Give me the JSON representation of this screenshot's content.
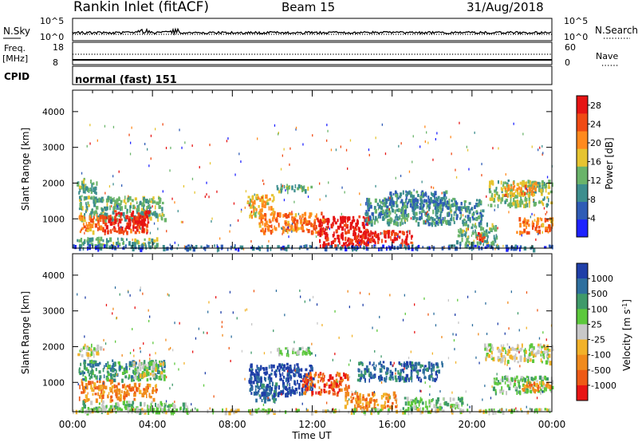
{
  "header": {
    "station": "Rankin Inlet (fitACF)",
    "beam": "Beam 15",
    "date": "31/Aug/2018"
  },
  "top_panels": {
    "nsky": {
      "label": "N.Sky",
      "tick_top": "10^5",
      "tick_bottom": "10^0"
    },
    "nsearch": {
      "label": "N.Search",
      "tick_top": "10^5",
      "tick_bottom": "10^0"
    },
    "freq": {
      "label_line1": "Freq.",
      "label_line2": "[MHz]",
      "tick_top": "18",
      "tick_bottom": "8"
    },
    "nave": {
      "label": "Nave",
      "tick_top": "60",
      "tick_bottom": "0"
    },
    "cpid": {
      "label": "CPID",
      "value": "normal (fast) 151"
    }
  },
  "chart_data": [
    {
      "type": "heatmap",
      "panel": "power",
      "ylabel": "Slant Range [km]",
      "yticks": [
        1000,
        2000,
        3000,
        4000
      ],
      "ylim": [
        180,
        4600
      ],
      "xlabel": "Time UT",
      "xticks": [
        "00:00",
        "04:00",
        "08:00",
        "12:00",
        "16:00",
        "20:00",
        "00:00"
      ],
      "xlim_hours": [
        0,
        24
      ],
      "colorbar": {
        "label": "Power [dB]",
        "ticks": [
          4,
          8,
          12,
          16,
          20,
          24,
          28
        ],
        "range": [
          0,
          30
        ],
        "colors": [
          "#1e22ff",
          "#2f5cb6",
          "#3d8e8e",
          "#6ab46a",
          "#e6c430",
          "#ff8a1e",
          "#f04a14",
          "#e61414"
        ]
      },
      "regions": [
        {
          "t0": 0.2,
          "t1": 1.2,
          "r0": 1750,
          "r1": 2150,
          "level": 12
        },
        {
          "t0": 0.3,
          "t1": 4.6,
          "r0": 1000,
          "r1": 1650,
          "level": 12
        },
        {
          "t0": 0.3,
          "t1": 1.5,
          "r0": 650,
          "r1": 1150,
          "level": 22
        },
        {
          "t0": 1.5,
          "t1": 3.8,
          "r0": 650,
          "r1": 1250,
          "level": 26
        },
        {
          "t0": 2.6,
          "t1": 3.6,
          "r0": 800,
          "r1": 1100,
          "level": 28
        },
        {
          "t0": 0.2,
          "t1": 4.2,
          "r0": 250,
          "r1": 500,
          "level": 12
        },
        {
          "t0": 8.7,
          "t1": 10.2,
          "r0": 1100,
          "r1": 1700,
          "level": 18
        },
        {
          "t0": 9.3,
          "t1": 12.6,
          "r0": 650,
          "r1": 1200,
          "level": 22
        },
        {
          "t0": 10.2,
          "t1": 12.0,
          "r0": 1800,
          "r1": 2000,
          "level": 12
        },
        {
          "t0": 12.2,
          "t1": 14.8,
          "r0": 250,
          "r1": 1100,
          "level": 28
        },
        {
          "t0": 14.0,
          "t1": 17.0,
          "r0": 300,
          "r1": 700,
          "level": 28
        },
        {
          "t0": 14.6,
          "t1": 20.5,
          "r0": 900,
          "r1": 1600,
          "level": 10
        },
        {
          "t0": 15.5,
          "t1": 18.8,
          "r0": 1350,
          "r1": 1800,
          "level": 8
        },
        {
          "t0": 19.2,
          "t1": 21.2,
          "r0": 300,
          "r1": 900,
          "level": 12
        },
        {
          "t0": 20.2,
          "t1": 20.8,
          "r0": 400,
          "r1": 650,
          "level": 26
        },
        {
          "t0": 20.8,
          "t1": 24.0,
          "r0": 1400,
          "r1": 2100,
          "level": 14
        },
        {
          "t0": 21.6,
          "t1": 23.2,
          "r0": 1700,
          "r1": 2050,
          "level": 20
        },
        {
          "t0": 22.2,
          "t1": 24.0,
          "r0": 650,
          "r1": 1050,
          "level": 22
        },
        {
          "t0": 0.0,
          "t1": 24.0,
          "r0": 190,
          "r1": 290,
          "level": 6
        }
      ]
    },
    {
      "type": "heatmap",
      "panel": "velocity",
      "ylabel": "Slant Range [km]",
      "yticks": [
        1000,
        2000,
        3000,
        4000
      ],
      "ylim": [
        180,
        4600
      ],
      "xlabel": "Time UT",
      "xticks": [
        "00:00",
        "04:00",
        "08:00",
        "12:00",
        "16:00",
        "20:00",
        "00:00"
      ],
      "xlim_hours": [
        0,
        24
      ],
      "colorbar": {
        "label": "Velocity [m s^-1]",
        "ticks": [
          1000,
          500,
          100,
          25,
          -25,
          -100,
          -500,
          -1000
        ],
        "colors": [
          "#1f3fa8",
          "#2e6f9e",
          "#3f9a6a",
          "#5cc83c",
          "#c8c8c8",
          "#f2b22a",
          "#f08a1c",
          "#ee5a16",
          "#e81414"
        ]
      },
      "regions": [
        {
          "t0": 0.2,
          "t1": 1.4,
          "r0": 1750,
          "r1": 2100,
          "level": 4
        },
        {
          "t0": 0.3,
          "t1": 4.6,
          "r0": 1100,
          "r1": 1650,
          "level": 2
        },
        {
          "t0": 0.3,
          "t1": 2.0,
          "r0": 500,
          "r1": 1100,
          "level": 6
        },
        {
          "t0": 2.0,
          "t1": 4.2,
          "r0": 550,
          "r1": 1000,
          "level": 6
        },
        {
          "t0": 3.0,
          "t1": 4.6,
          "r0": 1150,
          "r1": 1600,
          "level": 4
        },
        {
          "t0": 0.4,
          "t1": 5.8,
          "r0": 200,
          "r1": 500,
          "level": 3
        },
        {
          "t0": 8.8,
          "t1": 12.0,
          "r0": 700,
          "r1": 1550,
          "level": 0
        },
        {
          "t0": 9.0,
          "t1": 10.2,
          "r0": 500,
          "r1": 1000,
          "level": 1
        },
        {
          "t0": 11.4,
          "t1": 13.8,
          "r0": 700,
          "r1": 1300,
          "level": 7
        },
        {
          "t0": 13.6,
          "t1": 16.2,
          "r0": 300,
          "r1": 750,
          "level": 6
        },
        {
          "t0": 14.2,
          "t1": 18.5,
          "r0": 1100,
          "r1": 1600,
          "level": 1
        },
        {
          "t0": 16.5,
          "t1": 19.5,
          "r0": 300,
          "r1": 600,
          "level": 3
        },
        {
          "t0": 10.2,
          "t1": 12.0,
          "r0": 1800,
          "r1": 2000,
          "level": 3
        },
        {
          "t0": 20.6,
          "t1": 24.0,
          "r0": 1600,
          "r1": 2100,
          "level": 4
        },
        {
          "t0": 21.0,
          "t1": 24.0,
          "r0": 750,
          "r1": 1200,
          "level": 3
        },
        {
          "t0": 22.4,
          "t1": 24.0,
          "r0": 800,
          "r1": 1050,
          "level": 6
        },
        {
          "t0": 0.0,
          "t1": 24.0,
          "r0": 190,
          "r1": 290,
          "level": 4
        }
      ]
    }
  ]
}
